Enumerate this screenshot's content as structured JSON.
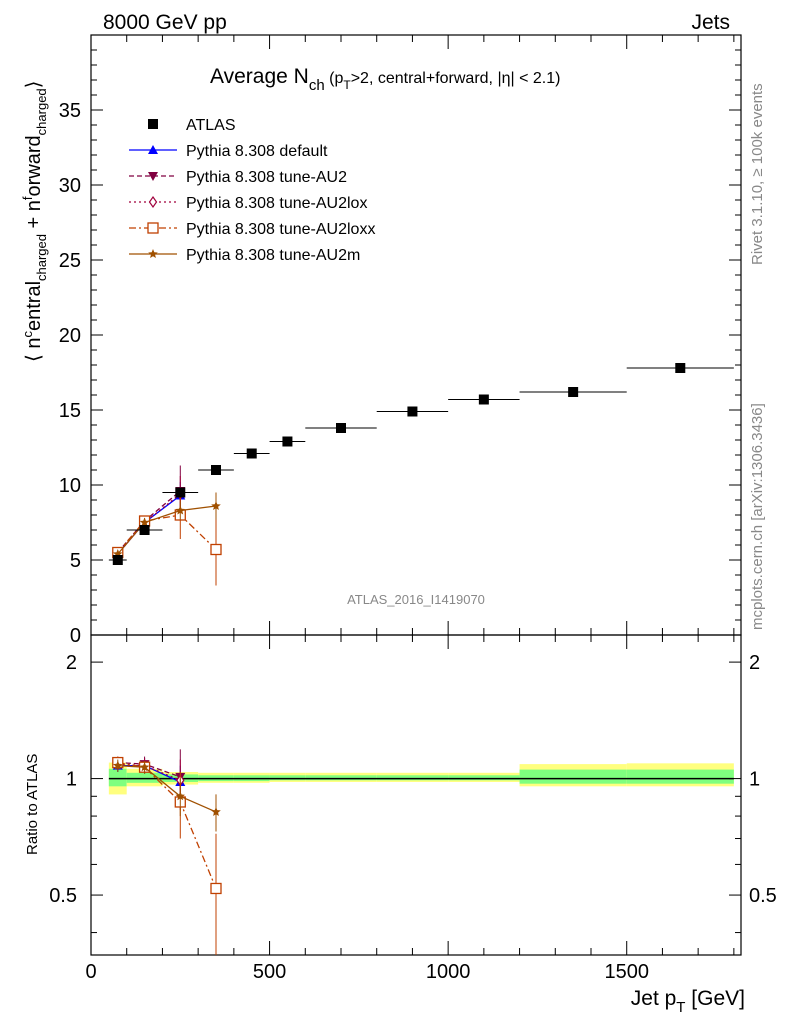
{
  "header": {
    "left": "8000 GeV pp",
    "right": "Jets"
  },
  "plot_title": {
    "main": "Average N",
    "sub": "ch",
    "rest": " (p",
    "rest_sub": "T",
    "rest2": ">2, central+forward, |η| < 2.1)"
  },
  "side_text": {
    "rivet": "Rivet 3.1.10, ≥ 100k events",
    "mcplots": "mcplots.cern.ch [arXiv:1306.3436]"
  },
  "watermark": "ATLAS_2016_I1419070",
  "ylabel_main": "⟨ n^c entral_charged + n^f orward_charged ⟩",
  "ylabel_ratio": "Ratio to ATLAS",
  "xlabel": "Jet p_T [GeV]",
  "colors": {
    "atlas": "#000000",
    "default": "#0000ff",
    "au2": "#800040",
    "au2lox": "#a0003c",
    "au2loxx": "#c04000",
    "au2m": "#a05000",
    "band_green": "#7fff7f",
    "band_yellow": "#ffff7f"
  },
  "chart_data": [
    {
      "type": "scatter",
      "title": "Average N_ch (p_T>2, central+forward, |η| < 2.1)",
      "xlabel": "Jet p_T [GeV]",
      "ylabel": "⟨ n^c entral_charged + n^f orward_charged ⟩",
      "xlim": [
        0,
        1820
      ],
      "ylim": [
        0,
        40
      ],
      "yticks": [
        0,
        5,
        10,
        15,
        20,
        25,
        30,
        35
      ],
      "xticks": [
        0,
        500,
        1000,
        1500
      ],
      "legend_position": "top-left",
      "series": [
        {
          "name": "ATLAS",
          "marker": "square-filled",
          "line": "none",
          "color": "#000000",
          "x": [
            75,
            150,
            250,
            350,
            450,
            550,
            700,
            900,
            1100,
            1350,
            1650
          ],
          "y": [
            5.0,
            7.0,
            9.5,
            11.0,
            12.1,
            12.9,
            13.8,
            14.9,
            15.7,
            16.2,
            17.8
          ],
          "xerr": [
            25,
            50,
            50,
            50,
            50,
            50,
            100,
            100,
            100,
            150,
            150
          ]
        },
        {
          "name": "Pythia 8.308 default",
          "marker": "triangle-up",
          "line": "solid",
          "color": "#0000ff",
          "x": [
            75,
            150,
            250
          ],
          "y": [
            5.4,
            7.5,
            9.3
          ],
          "yerr": [
            0.2,
            0.35,
            0.9
          ]
        },
        {
          "name": "Pythia 8.308 tune-AU2",
          "marker": "triangle-down",
          "line": "dashed",
          "color": "#800040",
          "x": [
            75,
            150,
            250
          ],
          "y": [
            5.5,
            7.6,
            9.6
          ],
          "yerr": [
            0.2,
            0.35,
            1.7
          ]
        },
        {
          "name": "Pythia 8.308 tune-AU2lox",
          "marker": "diamond-open",
          "line": "dotted",
          "color": "#a0003c",
          "x": [
            75,
            150,
            250
          ],
          "y": [
            5.4,
            7.5,
            9.4
          ],
          "yerr": [
            0.2,
            0.35,
            1.2
          ]
        },
        {
          "name": "Pythia 8.308 tune-AU2loxx",
          "marker": "square-open",
          "line": "dashdot",
          "color": "#c04000",
          "x": [
            75,
            150,
            250,
            350
          ],
          "y": [
            5.5,
            7.6,
            8.0,
            5.7
          ],
          "yerr": [
            0.2,
            0.3,
            1.6,
            2.4
          ]
        },
        {
          "name": "Pythia 8.308 tune-AU2m",
          "marker": "star",
          "line": "solid",
          "color": "#a05000",
          "x": [
            75,
            150,
            250,
            350
          ],
          "y": [
            5.4,
            7.5,
            8.3,
            8.6
          ],
          "yerr": [
            0.2,
            0.3,
            0.6,
            0.9
          ]
        }
      ]
    },
    {
      "type": "line",
      "ylabel": "Ratio to ATLAS",
      "xlabel": "Jet p_T [GeV]",
      "xlim": [
        0,
        1820
      ],
      "ylim": [
        0.35,
        2.35
      ],
      "yscale": "log",
      "yticks": [
        0.5,
        1,
        2
      ],
      "xticks": [
        0,
        500,
        1000,
        1500
      ],
      "bands": {
        "edges": [
          50,
          100,
          200,
          300,
          400,
          500,
          600,
          800,
          1000,
          1200,
          1500,
          1800
        ],
        "green_lo": [
          0.955,
          0.975,
          0.98,
          0.985,
          0.985,
          0.99,
          0.99,
          0.99,
          0.99,
          0.97,
          0.97
        ],
        "green_hi": [
          1.06,
          1.035,
          1.025,
          1.02,
          1.02,
          1.02,
          1.02,
          1.02,
          1.02,
          1.055,
          1.055
        ],
        "yellow_lo": [
          0.91,
          0.955,
          0.965,
          0.975,
          0.975,
          0.98,
          0.98,
          0.98,
          0.98,
          0.955,
          0.955
        ],
        "yellow_hi": [
          1.1,
          1.06,
          1.04,
          1.035,
          1.035,
          1.035,
          1.035,
          1.035,
          1.035,
          1.09,
          1.095
        ]
      },
      "series": [
        {
          "name": "Pythia 8.308 default",
          "color": "#0000ff",
          "marker": "triangle-up",
          "line": "solid",
          "x": [
            75,
            150,
            250
          ],
          "y": [
            1.08,
            1.08,
            0.98
          ],
          "yerr": [
            0.04,
            0.05,
            0.1
          ]
        },
        {
          "name": "Pythia 8.308 tune-AU2",
          "color": "#800040",
          "marker": "triangle-down",
          "line": "dashed",
          "x": [
            75,
            150,
            250
          ],
          "y": [
            1.1,
            1.09,
            1.01
          ],
          "yerr": [
            0.04,
            0.05,
            0.18
          ]
        },
        {
          "name": "Pythia 8.308 tune-AU2lox",
          "color": "#a0003c",
          "marker": "diamond-open",
          "line": "dotted",
          "x": [
            75,
            150,
            250
          ],
          "y": [
            1.09,
            1.08,
            0.99
          ],
          "yerr": [
            0.04,
            0.05,
            0.13
          ]
        },
        {
          "name": "Pythia 8.308 tune-AU2loxx",
          "color": "#c04000",
          "marker": "square-open",
          "line": "dashdot",
          "x": [
            75,
            150,
            250,
            350
          ],
          "y": [
            1.1,
            1.07,
            0.87,
            0.52
          ],
          "yerr": [
            0.04,
            0.04,
            0.17,
            0.2
          ]
        },
        {
          "name": "Pythia 8.308 tune-AU2m",
          "color": "#a05000",
          "marker": "star",
          "line": "solid",
          "x": [
            75,
            150,
            250,
            350
          ],
          "y": [
            1.08,
            1.07,
            0.9,
            0.82
          ],
          "yerr": [
            0.04,
            0.04,
            0.1,
            0.09
          ]
        }
      ]
    }
  ]
}
